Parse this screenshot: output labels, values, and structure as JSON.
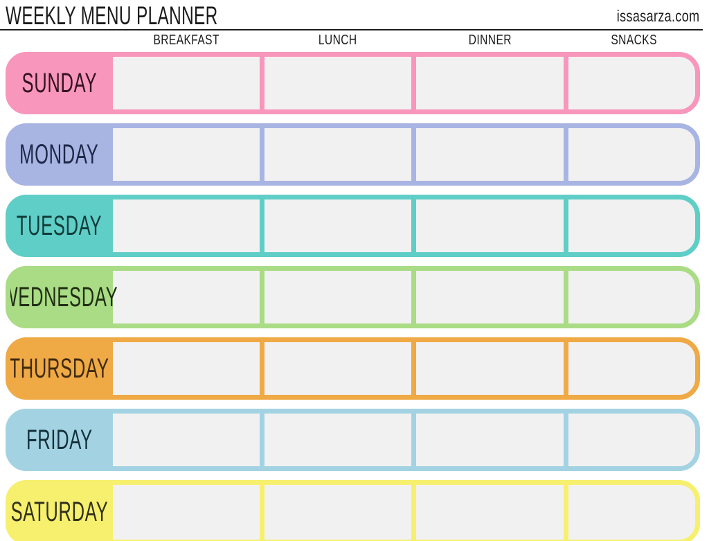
{
  "header": {
    "title": "WEEKLY MENU PLANNER",
    "site": "issasarza.com"
  },
  "columns": [
    "BREAKFAST",
    "LUNCH",
    "DINNER",
    "SNACKS"
  ],
  "days": [
    {
      "label": "SUNDAY",
      "color": "#F896BB",
      "text_color": "#33131F"
    },
    {
      "label": "MONDAY",
      "color": "#A8B4E2",
      "text_color": "#1C2747"
    },
    {
      "label": "TUESDAY",
      "color": "#5FCEC7",
      "text_color": "#113B38"
    },
    {
      "label": "WEDNESDAY",
      "color": "#A9DC85",
      "text_color": "#202D13"
    },
    {
      "label": "THURSDAY",
      "color": "#EFA945",
      "text_color": "#3F2A10"
    },
    {
      "label": "FRIDAY",
      "color": "#A3D3E2",
      "text_color": "#14303C"
    },
    {
      "label": "SATURDAY",
      "color": "#F6F06E",
      "text_color": "#32301C"
    }
  ],
  "cells": {
    "background": "#F2F1F2"
  },
  "accents": {
    "rule_color": "#1C1C1C",
    "text_color": "#1B1B1B"
  }
}
